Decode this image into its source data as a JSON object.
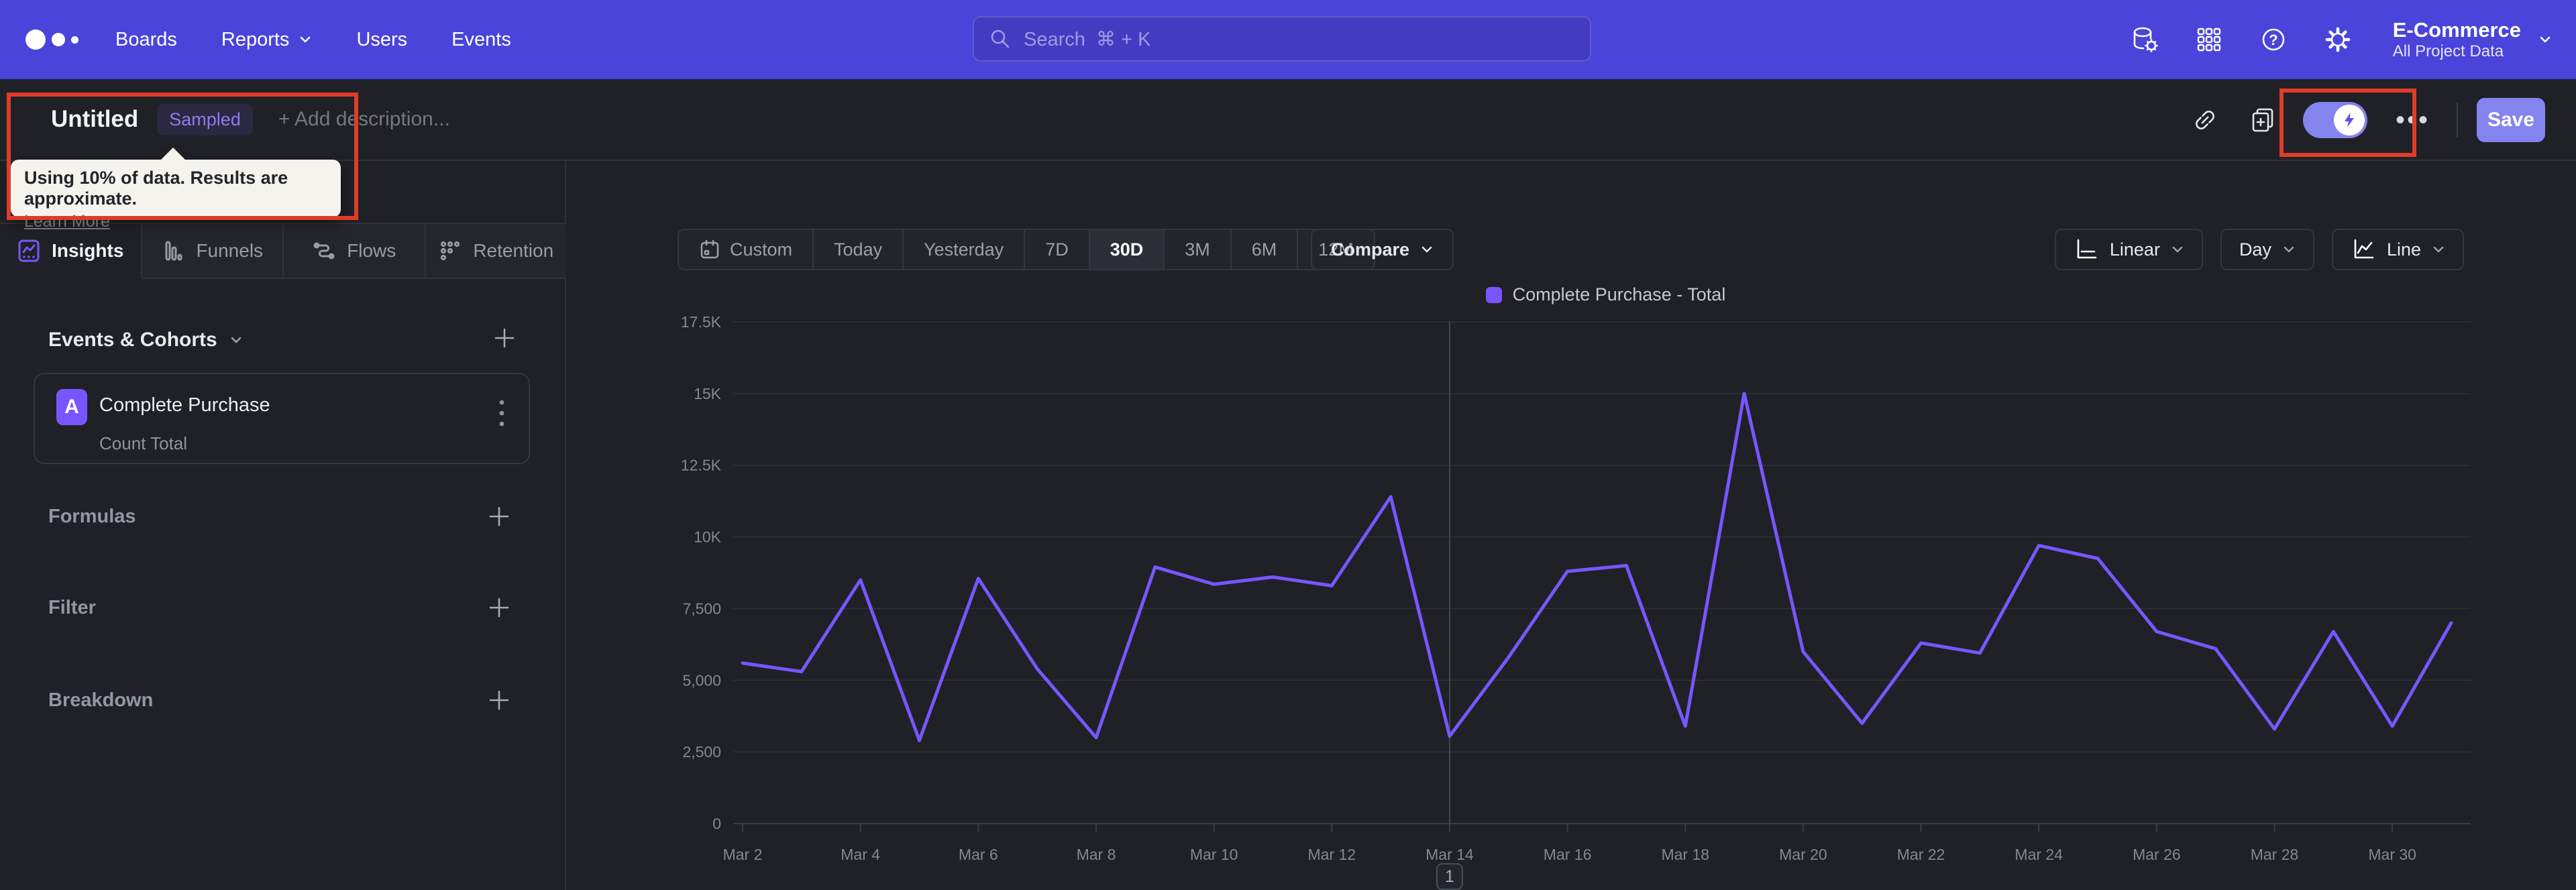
{
  "nav": {
    "logo": "mixpanel-logo",
    "menu": [
      {
        "label": "Boards"
      },
      {
        "label": "Reports"
      },
      {
        "label": "Users"
      },
      {
        "label": "Events"
      }
    ],
    "search": {
      "placeholder": "Search",
      "shortcut": "⌘ + K"
    },
    "project": {
      "name": "E-Commerce",
      "scope": "All Project Data"
    }
  },
  "report_header": {
    "title": "Untitled",
    "badge": "Sampled",
    "description_placeholder": "+ Add description...",
    "save_label": "Save"
  },
  "sampling_tooltip": {
    "message": "Using 10% of data. Results are approximate.",
    "link": "Learn More"
  },
  "sidebar": {
    "tabs": [
      {
        "label": "Insights",
        "active": true
      },
      {
        "label": "Funnels",
        "active": false
      },
      {
        "label": "Flows",
        "active": false
      },
      {
        "label": "Retention",
        "active": false
      }
    ],
    "events_heading": "Events & Cohorts",
    "event_card": {
      "series_letter": "A",
      "event_name": "Complete Purchase",
      "aggregation": "Count Total"
    },
    "sections": [
      {
        "label": "Formulas"
      },
      {
        "label": "Filter"
      },
      {
        "label": "Breakdown"
      }
    ]
  },
  "toolbar": {
    "date_ranges": [
      "Custom",
      "Today",
      "Yesterday",
      "7D",
      "30D",
      "3M",
      "6M",
      "12M"
    ],
    "active_range": "30D",
    "compare_label": "Compare",
    "view_dropdowns": [
      {
        "label": "Linear"
      },
      {
        "label": "Day"
      },
      {
        "label": "Line"
      }
    ]
  },
  "chart_data": {
    "type": "line",
    "legend": "Complete Purchase - Total",
    "color": "#7856FF",
    "x": [
      "Mar 2",
      "Mar 3",
      "Mar 4",
      "Mar 5",
      "Mar 6",
      "Mar 7",
      "Mar 8",
      "Mar 9",
      "Mar 10",
      "Mar 11",
      "Mar 12",
      "Mar 13",
      "Mar 14",
      "Mar 15",
      "Mar 16",
      "Mar 17",
      "Mar 18",
      "Mar 19",
      "Mar 20",
      "Mar 21",
      "Mar 22",
      "Mar 23",
      "Mar 24",
      "Mar 25",
      "Mar 26",
      "Mar 27",
      "Mar 28",
      "Mar 29",
      "Mar 30",
      "Mar 31"
    ],
    "values": [
      5600,
      5300,
      8500,
      2900,
      8550,
      5400,
      3000,
      8950,
      8350,
      8600,
      8300,
      11400,
      3050,
      5800,
      8800,
      9000,
      3400,
      15000,
      6000,
      3500,
      6300,
      5950,
      9700,
      9250,
      6700,
      6100,
      3300,
      6700,
      3400,
      7000
    ],
    "ylim": [
      0,
      17500
    ],
    "yticks": [
      0,
      2500,
      5000,
      7500,
      10000,
      12500,
      15000,
      17500
    ],
    "ytick_labels": [
      "0",
      "2,500",
      "5,000",
      "7,500",
      "10K",
      "12.5K",
      "15K",
      "17.5K"
    ],
    "xtick_every": 2,
    "grid": true,
    "legend_position": "top-center",
    "annotation": {
      "label": "1",
      "date": "Mar 14"
    }
  }
}
